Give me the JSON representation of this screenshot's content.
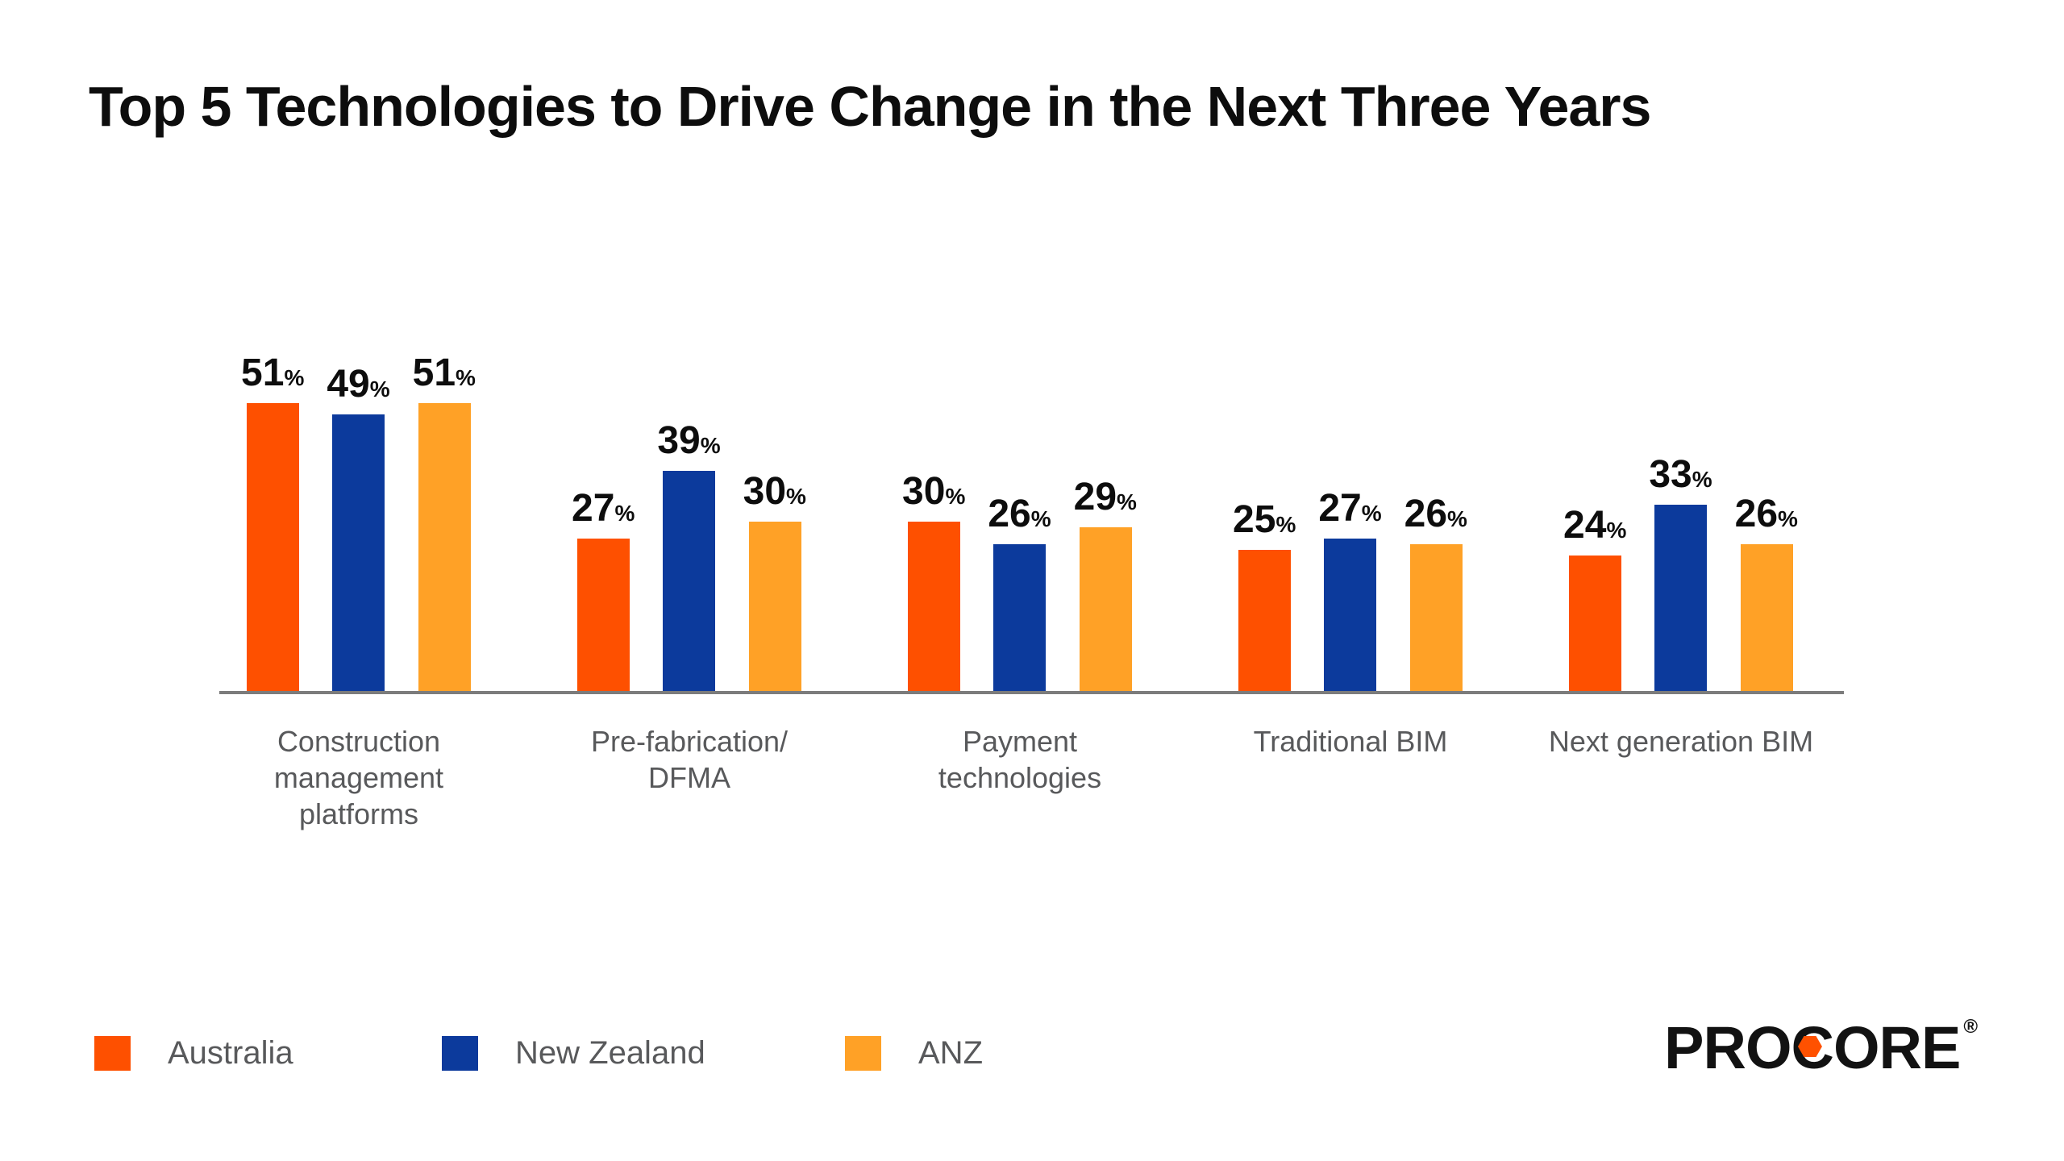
{
  "title": "Top 5 Technologies to Drive Change in the Next Three Years",
  "chart_data": {
    "type": "bar",
    "title": "Top 5 Technologies to Drive Change in the Next Three Years",
    "categories": [
      "Construction\nmanagement\nplatforms",
      "Pre-fabrication/\nDFMA",
      "Payment\ntechnologies",
      "Traditional BIM",
      "Next generation BIM"
    ],
    "series": [
      {
        "name": "Australia",
        "color": "#FE5000",
        "values": [
          51,
          27,
          30,
          25,
          24
        ]
      },
      {
        "name": "New Zealand",
        "color": "#0C3A9C",
        "values": [
          49,
          39,
          26,
          27,
          33
        ]
      },
      {
        "name": "ANZ",
        "color": "#FFA126",
        "values": [
          51,
          30,
          29,
          26,
          26
        ]
      }
    ],
    "value_suffix": "%",
    "xlabel": "",
    "ylabel": "",
    "ylim": [
      0,
      60
    ],
    "grid": false,
    "data_labels": true,
    "legend_position": "bottom-left",
    "axis_line_color": "#7C7C7C",
    "label_color": "#58595B",
    "value_label_color": "#0D0D0D"
  },
  "branding": {
    "logo_text_before_hex": "PROC",
    "logo_text_after_hex": "ORE",
    "registered_mark": "®",
    "hexagon_color": "#FF5100"
  }
}
